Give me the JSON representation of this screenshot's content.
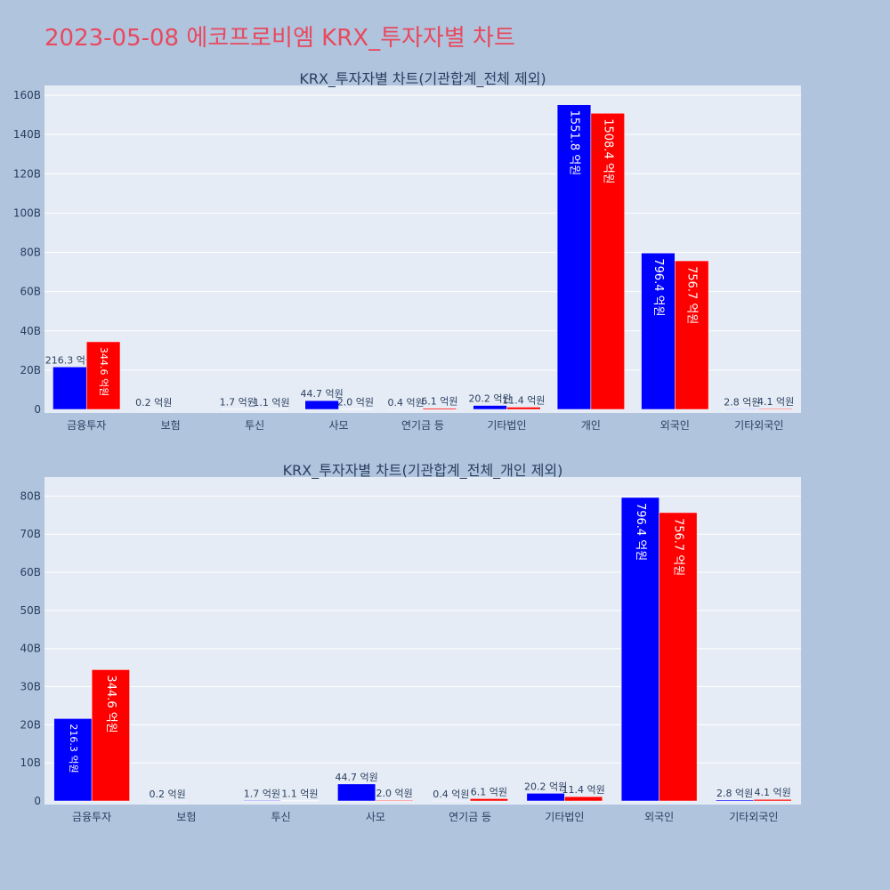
{
  "title": "2023-05-08 에코프로비엠 KRX_투자자별 차트",
  "colors": {
    "buy": "#0000ff",
    "sell": "#ff0000",
    "title": "#e8495e",
    "plot_bg": "#e5ecf6",
    "page_bg": "#b0c4de"
  },
  "chart_data": [
    {
      "type": "bar",
      "title": "KRX_투자자별 차트(기관합계_전체 제외)",
      "categories": [
        "금융투자",
        "보험",
        "투신",
        "사모",
        "연기금 등",
        "기타법인",
        "개인",
        "외국인",
        "기타외국인"
      ],
      "series": [
        {
          "color": "#0000ff",
          "values": [
            21630000000,
            20000000,
            170000000,
            4470000000,
            40000000,
            2020000000,
            155180000000,
            79640000000,
            280000000
          ],
          "labels": [
            "216.3 억원",
            "0.2 억원",
            "1.7 억원",
            "44.7 억원",
            "0.4 억원",
            "20.2 억원",
            "1551.8 억원",
            "796.4 억원",
            "2.8 억원"
          ]
        },
        {
          "color": "#ff0000",
          "values": [
            34460000000,
            0,
            110000000,
            200000000,
            610000000,
            1140000000,
            150840000000,
            75670000000,
            410000000
          ],
          "labels": [
            "344.6 억원",
            "",
            "1.1 억원",
            "2.0 억원",
            "6.1 억원",
            "11.4 억원",
            "1508.4 억원",
            "756.7 억원",
            "4.1 억원"
          ]
        }
      ],
      "ylim": [
        0,
        165000000000
      ],
      "yticks": [
        0,
        20000000000,
        40000000000,
        60000000000,
        80000000000,
        100000000000,
        120000000000,
        140000000000,
        160000000000
      ],
      "ytick_labels": [
        "0",
        "20B",
        "40B",
        "60B",
        "80B",
        "100B",
        "120B",
        "140B",
        "160B"
      ],
      "grid": true
    },
    {
      "type": "bar",
      "title": "KRX_투자자별 차트(기관합계_전체_개인 제외)",
      "categories": [
        "금융투자",
        "보험",
        "투신",
        "사모",
        "연기금 등",
        "기타법인",
        "외국인",
        "기타외국인"
      ],
      "series": [
        {
          "color": "#0000ff",
          "values": [
            21630000000,
            20000000,
            170000000,
            4470000000,
            40000000,
            2020000000,
            79640000000,
            280000000
          ],
          "labels": [
            "216.3 억원",
            "0.2 억원",
            "1.7 억원",
            "44.7 억원",
            "0.4 억원",
            "20.2 억원",
            "796.4 억원",
            "2.8 억원"
          ]
        },
        {
          "color": "#ff0000",
          "values": [
            34460000000,
            0,
            110000000,
            200000000,
            610000000,
            1140000000,
            75670000000,
            410000000
          ],
          "labels": [
            "344.6 억원",
            "",
            "1.1 억원",
            "2.0 억원",
            "6.1 억원",
            "11.4 억원",
            "756.7 억원",
            "4.1 억원"
          ]
        }
      ],
      "ylim": [
        0,
        85000000000
      ],
      "yticks": [
        0,
        10000000000,
        20000000000,
        30000000000,
        40000000000,
        50000000000,
        60000000000,
        70000000000,
        80000000000
      ],
      "ytick_labels": [
        "0",
        "10B",
        "20B",
        "30B",
        "40B",
        "50B",
        "60B",
        "70B",
        "80B"
      ],
      "grid": true
    }
  ]
}
